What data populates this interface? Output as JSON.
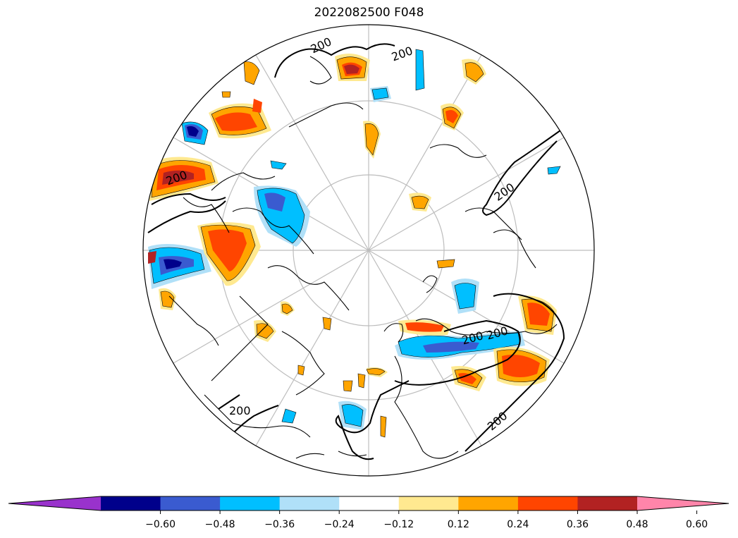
{
  "title": "2022082500 F048",
  "map": {
    "projection": "north-polar-stereographic",
    "contour_level": "200",
    "contour_labels": [
      "200",
      "200",
      "200",
      "200",
      "200",
      "200",
      "200",
      "200"
    ]
  },
  "colorbar": {
    "tick_labels": [
      "−0.60",
      "−0.48",
      "−0.36",
      "−0.24",
      "−0.12",
      "0.12",
      "0.24",
      "0.36",
      "0.48",
      "0.60"
    ],
    "colors": [
      "#9932cc",
      "#00008b",
      "#3a5bd0",
      "#00bfff",
      "#b0e0f8",
      "#ffffff",
      "#ffe990",
      "#ffa500",
      "#ff4500",
      "#b22222",
      "#ff85aa"
    ]
  }
}
